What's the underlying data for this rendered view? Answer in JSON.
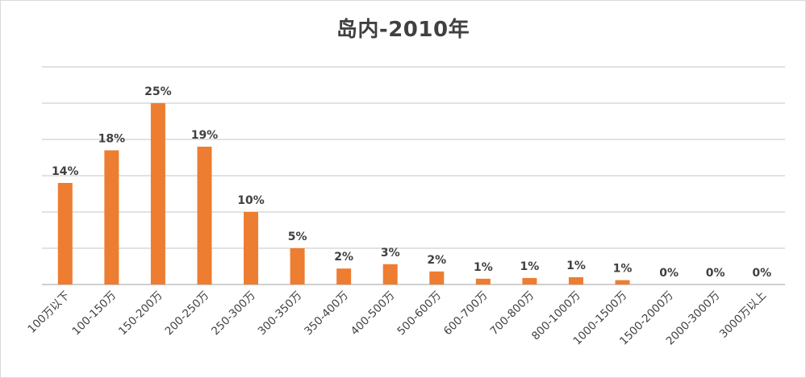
{
  "chart_data": {
    "type": "bar",
    "title": "岛内-2010年",
    "xlabel": "",
    "ylabel": "",
    "categories": [
      "100万以下",
      "100-150万",
      "150-200万",
      "200-250万",
      "250-300万",
      "300-350万",
      "350-400万",
      "400-500万",
      "500-600万",
      "600-700万",
      "700-800万",
      "800-1000万",
      "1000-1500万",
      "1500-2000万",
      "2000-3000万",
      "3000万以上"
    ],
    "values": [
      14,
      18,
      25,
      19,
      10,
      5,
      2,
      3,
      2,
      1,
      1,
      1,
      1,
      0,
      0,
      0
    ],
    "bar_display_values": [
      14,
      18.5,
      25,
      19,
      10,
      5,
      2.2,
      2.8,
      1.8,
      0.8,
      0.9,
      1.0,
      0.6,
      0,
      0,
      0
    ],
    "data_labels": [
      "14%",
      "18%",
      "25%",
      "19%",
      "10%",
      "5%",
      "2%",
      "3%",
      "2%",
      "1%",
      "1%",
      "1%",
      "1%",
      "0%",
      "0%",
      "0%"
    ],
    "ylim": [
      0,
      30
    ],
    "grid": true,
    "legend": "none",
    "bar_color": "#ed7d31"
  }
}
